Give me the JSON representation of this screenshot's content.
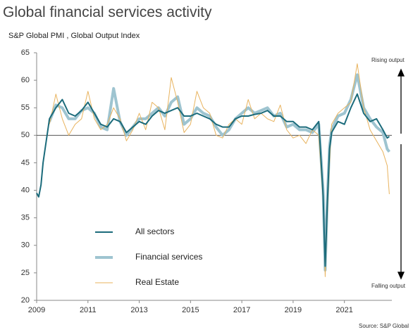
{
  "chart_data": {
    "type": "line",
    "title": "Global financial services activity",
    "subtitle": "S&P Global PMI , Global Output Index",
    "annotations": {
      "top": "Rising output",
      "bottom": "Falling output",
      "source": "Source: S&P Global"
    },
    "x": [
      2009.0,
      2009.08,
      2009.17,
      2009.25,
      2009.5,
      2009.75,
      2010.0,
      2010.25,
      2010.5,
      2010.75,
      2011.0,
      2011.25,
      2011.5,
      2011.75,
      2012.0,
      2012.25,
      2012.5,
      2012.75,
      2013.0,
      2013.25,
      2013.5,
      2013.75,
      2014.0,
      2014.25,
      2014.5,
      2014.75,
      2015.0,
      2015.25,
      2015.5,
      2015.75,
      2016.0,
      2016.25,
      2016.5,
      2016.75,
      2017.0,
      2017.25,
      2017.5,
      2017.75,
      2018.0,
      2018.25,
      2018.5,
      2018.75,
      2019.0,
      2019.25,
      2019.5,
      2019.75,
      2020.0,
      2020.17,
      2020.25,
      2020.33,
      2020.42,
      2020.5,
      2020.75,
      2021.0,
      2021.25,
      2021.5,
      2021.75,
      2022.0,
      2022.25,
      2022.5,
      2022.67,
      2022.75
    ],
    "series": [
      {
        "name": "All sectors",
        "color": "#1b6b7b",
        "width": 2,
        "values": [
          39.5,
          38.8,
          41,
          45,
          53,
          55,
          56.5,
          54,
          53.5,
          54.5,
          56,
          54,
          52,
          51.5,
          53,
          52.5,
          50.5,
          51.5,
          52.5,
          52,
          53.5,
          54.5,
          54,
          54.5,
          55,
          53.5,
          53.5,
          54,
          53.5,
          53,
          52,
          51.5,
          51.5,
          53,
          53.5,
          53.5,
          53.8,
          54,
          54.5,
          53.5,
          53.5,
          52.5,
          52.5,
          51.5,
          51.5,
          51,
          52.5,
          39,
          26.2,
          37,
          47.5,
          50.5,
          52.5,
          52,
          55,
          57.5,
          54,
          52.5,
          53,
          51,
          49.5,
          49.8
        ]
      },
      {
        "name": "Financial services",
        "color": "#9ec4d0",
        "width": 4,
        "values": [
          null,
          null,
          null,
          null,
          52.5,
          55.5,
          55,
          53,
          53,
          54.5,
          55,
          54,
          51.5,
          51,
          58.5,
          52.5,
          50,
          51.5,
          53,
          53,
          54,
          55,
          53.5,
          56,
          57,
          52,
          53,
          55,
          54,
          53.5,
          51.5,
          50,
          51,
          53,
          54,
          55,
          54,
          54.5,
          55,
          53.5,
          54,
          51.5,
          52,
          51,
          51,
          50.5,
          52,
          40,
          25.5,
          38,
          48,
          51,
          53.5,
          54,
          56.5,
          61,
          55,
          53,
          51.5,
          50.5,
          47.5,
          47
        ]
      },
      {
        "name": "Real Estate",
        "color": "#e8b35e",
        "width": 1,
        "values": [
          null,
          null,
          null,
          null,
          52,
          57.5,
          53,
          50,
          52,
          53,
          58,
          53,
          51,
          52,
          55,
          53,
          49,
          51,
          54,
          51,
          56,
          55,
          51,
          60.5,
          56,
          50.5,
          52,
          58,
          55,
          54,
          50,
          49.5,
          52,
          53,
          52,
          56.5,
          53,
          54,
          53,
          52.5,
          55.5,
          51,
          49.5,
          50,
          48.5,
          51,
          50,
          38,
          24.3,
          35,
          45,
          52,
          54,
          55,
          56,
          63,
          55,
          51,
          49,
          47,
          44.5,
          39.3
        ]
      }
    ],
    "xlim": [
      2009,
      2022.85
    ],
    "xticks": [
      2009,
      2011,
      2013,
      2015,
      2017,
      2019,
      2021
    ],
    "ylim": [
      20,
      65
    ],
    "yticks": [
      20,
      25,
      30,
      35,
      40,
      45,
      50,
      55,
      60,
      65
    ],
    "reference_line": 50
  }
}
